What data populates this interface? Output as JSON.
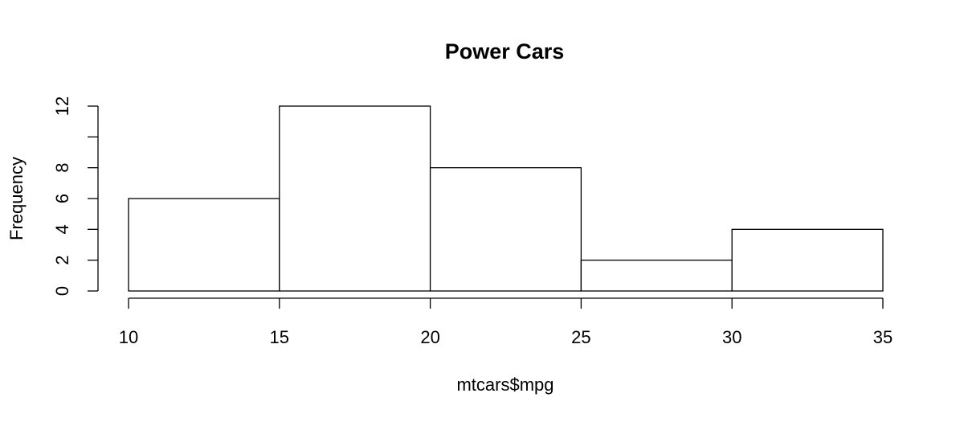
{
  "chart_data": {
    "type": "bar",
    "title": "Power Cars",
    "xlabel": "mtcars$mpg",
    "ylabel": "Frequency",
    "bins": [
      {
        "x0": 10,
        "x1": 15,
        "count": 6
      },
      {
        "x0": 15,
        "x1": 20,
        "count": 12
      },
      {
        "x0": 20,
        "x1": 25,
        "count": 8
      },
      {
        "x0": 25,
        "x1": 30,
        "count": 2
      },
      {
        "x0": 30,
        "x1": 35,
        "count": 4
      }
    ],
    "xlim": [
      10,
      35
    ],
    "ylim": [
      0,
      12
    ],
    "x_ticks": [
      10,
      15,
      20,
      25,
      30,
      35
    ],
    "y_ticks": [
      0,
      2,
      4,
      6,
      8,
      10,
      12
    ],
    "y_tick_labels": [
      "0",
      "2",
      "4",
      "6",
      "8",
      "",
      "12"
    ],
    "grid": false,
    "bar_fill": "#ffffff",
    "stroke_color": "#000000"
  }
}
